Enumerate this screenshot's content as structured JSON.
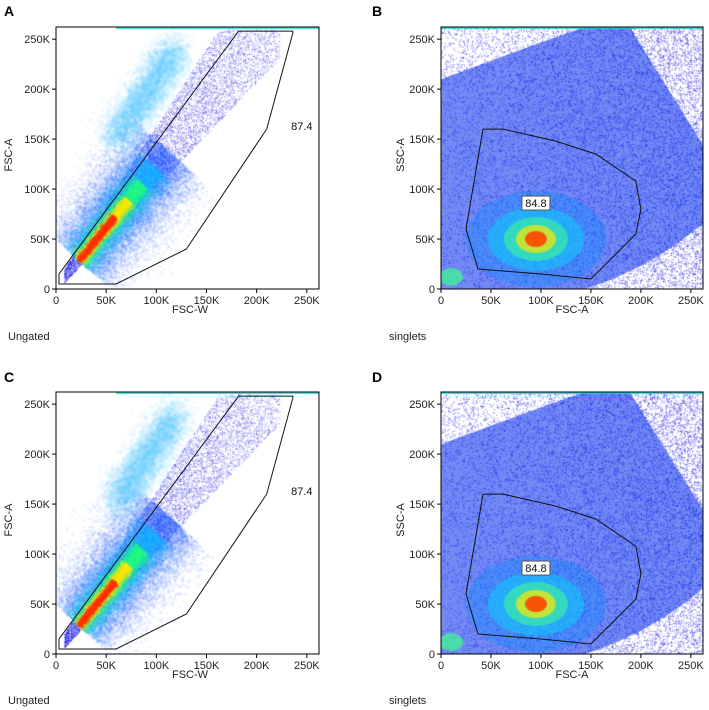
{
  "chart_data": [
    {
      "type": "scatter",
      "panel": "A",
      "xlabel": "FSC-W",
      "ylabel": "FSC-A",
      "xlim": [
        0,
        262144
      ],
      "ylim": [
        0,
        262144
      ],
      "xticks": [
        0,
        50000,
        100000,
        150000,
        200000,
        250000
      ],
      "xtick_labels": [
        "0",
        "50K",
        "100K",
        "150K",
        "200K",
        "250K"
      ],
      "yticks": [
        0,
        50000,
        100000,
        150000,
        200000,
        250000
      ],
      "ytick_labels": [
        "0",
        "50K",
        "100K",
        "150K",
        "200K",
        "250K"
      ],
      "status": "Ungated",
      "gate": {
        "label": "87.4",
        "label_pos": [
          245000,
          160000
        ],
        "boxed": false,
        "vertices": [
          [
            3000,
            5000
          ],
          [
            3000,
            15000
          ],
          [
            182000,
            258000
          ],
          [
            236000,
            258000
          ],
          [
            236000,
            256000
          ],
          [
            210000,
            160000
          ],
          [
            130000,
            40000
          ],
          [
            60000,
            5000
          ]
        ]
      },
      "population": "diagonal"
    },
    {
      "type": "scatter",
      "panel": "B",
      "xlabel": "FSC-A",
      "ylabel": "SSC-A",
      "xlim": [
        0,
        262144
      ],
      "ylim": [
        0,
        262144
      ],
      "xticks": [
        0,
        50000,
        100000,
        150000,
        200000,
        250000
      ],
      "xtick_labels": [
        "0",
        "50K",
        "100K",
        "150K",
        "200K",
        "250K"
      ],
      "yticks": [
        0,
        50000,
        100000,
        150000,
        200000,
        250000
      ],
      "ytick_labels": [
        "0",
        "50K",
        "100K",
        "150K",
        "200K",
        "250K"
      ],
      "status": "singlets",
      "gate": {
        "label": "84.8",
        "label_pos": [
          95000,
          83000
        ],
        "boxed": true,
        "vertices": [
          [
            42000,
            160000
          ],
          [
            25000,
            60000
          ],
          [
            37000,
            20000
          ],
          [
            100000,
            15000
          ],
          [
            150000,
            10000
          ],
          [
            195000,
            55000
          ],
          [
            200000,
            80000
          ],
          [
            195000,
            108000
          ],
          [
            155000,
            135000
          ],
          [
            115000,
            148000
          ],
          [
            62000,
            160000
          ]
        ]
      },
      "population": "blob"
    },
    {
      "type": "scatter",
      "panel": "C",
      "xlabel": "FSC-W",
      "ylabel": "FSC-A",
      "xlim": [
        0,
        262144
      ],
      "ylim": [
        0,
        262144
      ],
      "xticks": [
        0,
        50000,
        100000,
        150000,
        200000,
        250000
      ],
      "xtick_labels": [
        "0",
        "50K",
        "100K",
        "150K",
        "200K",
        "250K"
      ],
      "yticks": [
        0,
        50000,
        100000,
        150000,
        200000,
        250000
      ],
      "ytick_labels": [
        "0",
        "50K",
        "100K",
        "150K",
        "200K",
        "250K"
      ],
      "status": "Ungated",
      "gate": {
        "label": "87.4",
        "label_pos": [
          245000,
          160000
        ],
        "boxed": false,
        "vertices": [
          [
            3000,
            5000
          ],
          [
            3000,
            15000
          ],
          [
            182000,
            258000
          ],
          [
            236000,
            258000
          ],
          [
            236000,
            256000
          ],
          [
            210000,
            160000
          ],
          [
            130000,
            40000
          ],
          [
            60000,
            5000
          ]
        ]
      },
      "population": "diagonal"
    },
    {
      "type": "scatter",
      "panel": "D",
      "xlabel": "FSC-A",
      "ylabel": "SSC-A",
      "xlim": [
        0,
        262144
      ],
      "ylim": [
        0,
        262144
      ],
      "xticks": [
        0,
        50000,
        100000,
        150000,
        200000,
        250000
      ],
      "xtick_labels": [
        "0",
        "50K",
        "100K",
        "150K",
        "200K",
        "250K"
      ],
      "yticks": [
        0,
        50000,
        100000,
        150000,
        200000,
        250000
      ],
      "ytick_labels": [
        "0",
        "50K",
        "100K",
        "150K",
        "200K",
        "250K"
      ],
      "status": "singlets",
      "gate": {
        "label": "84.8",
        "label_pos": [
          95000,
          83000
        ],
        "boxed": true,
        "vertices": [
          [
            42000,
            160000
          ],
          [
            25000,
            60000
          ],
          [
            37000,
            20000
          ],
          [
            100000,
            15000
          ],
          [
            150000,
            10000
          ],
          [
            195000,
            55000
          ],
          [
            200000,
            80000
          ],
          [
            195000,
            108000
          ],
          [
            155000,
            135000
          ],
          [
            115000,
            148000
          ],
          [
            62000,
            160000
          ]
        ]
      },
      "population": "blob"
    }
  ]
}
